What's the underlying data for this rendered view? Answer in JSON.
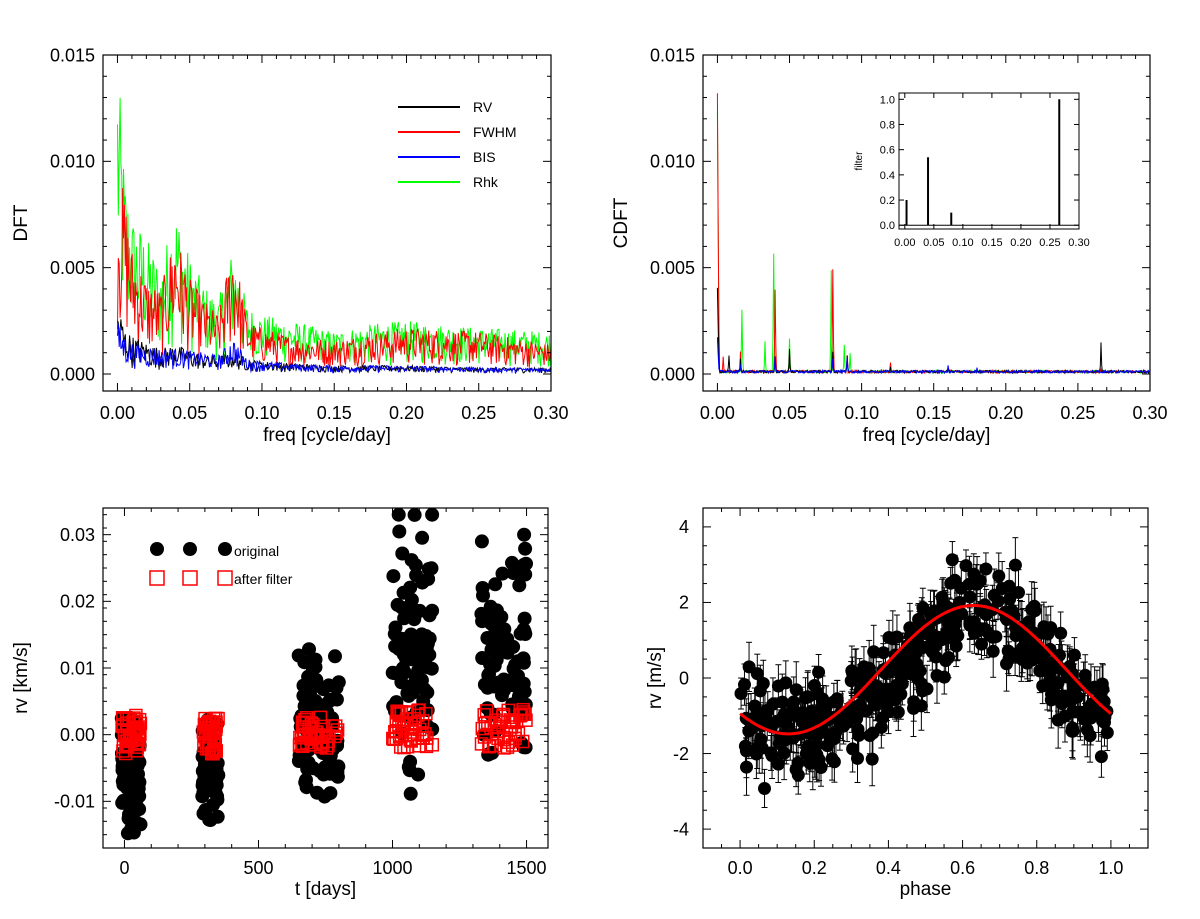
{
  "chart_data": [
    {
      "type": "line",
      "xlabel": "freq [cycle/day]",
      "ylabel": "DFT",
      "xlim": [
        -0.01,
        0.3
      ],
      "ylim": [
        -0.0008,
        0.015
      ],
      "x_ticks": [
        "0.00",
        "0.05",
        "0.10",
        "0.15",
        "0.20",
        "0.25",
        "0.30"
      ],
      "y_ticks": [
        "0.000",
        "0.005",
        "0.010",
        "0.015"
      ],
      "legend_position": "top-right",
      "series": [
        {
          "name": "RV",
          "color": "#000000",
          "x": [
            0.0,
            0.005,
            0.01,
            0.02,
            0.03,
            0.04,
            0.05,
            0.06,
            0.07,
            0.08,
            0.09,
            0.1,
            0.12,
            0.15,
            0.18,
            0.2,
            0.25,
            0.3
          ],
          "y": [
            0.0035,
            0.0022,
            0.0018,
            0.0015,
            0.0012,
            0.0014,
            0.0011,
            0.0009,
            0.0008,
            0.0011,
            0.0007,
            0.0006,
            0.0005,
            0.0004,
            0.0004,
            0.0004,
            0.0003,
            0.0003
          ]
        },
        {
          "name": "FWHM",
          "color": "#ff0000",
          "x": [
            0.0,
            0.005,
            0.01,
            0.02,
            0.03,
            0.04,
            0.05,
            0.06,
            0.07,
            0.08,
            0.09,
            0.1,
            0.12,
            0.15,
            0.18,
            0.2,
            0.25,
            0.3
          ],
          "y": [
            0.0098,
            0.0085,
            0.006,
            0.0045,
            0.004,
            0.0068,
            0.0045,
            0.0035,
            0.0028,
            0.0063,
            0.0025,
            0.0022,
            0.0018,
            0.0016,
            0.002,
            0.0022,
            0.002,
            0.0014
          ]
        },
        {
          "name": "BIS",
          "color": "#0000ff",
          "x": [
            0.0,
            0.005,
            0.01,
            0.02,
            0.03,
            0.04,
            0.05,
            0.06,
            0.07,
            0.08,
            0.09,
            0.1,
            0.12,
            0.15,
            0.18,
            0.2,
            0.25,
            0.3
          ],
          "y": [
            0.0025,
            0.0018,
            0.0015,
            0.0013,
            0.0012,
            0.0012,
            0.0011,
            0.001,
            0.0009,
            0.0017,
            0.0007,
            0.0006,
            0.0005,
            0.0004,
            0.0004,
            0.0004,
            0.0003,
            0.0003
          ]
        },
        {
          "name": "Rhk",
          "color": "#00ff00",
          "x": [
            0.0,
            0.005,
            0.01,
            0.02,
            0.03,
            0.04,
            0.05,
            0.06,
            0.07,
            0.08,
            0.09,
            0.1,
            0.12,
            0.15,
            0.18,
            0.2,
            0.25,
            0.3
          ],
          "y": [
            0.015,
            0.0095,
            0.0075,
            0.0065,
            0.005,
            0.008,
            0.0055,
            0.0042,
            0.0035,
            0.006,
            0.0032,
            0.0028,
            0.0025,
            0.002,
            0.0024,
            0.0025,
            0.0022,
            0.002
          ]
        }
      ]
    },
    {
      "type": "line",
      "xlabel": "freq [cycle/day]",
      "ylabel": "CDFT",
      "xlim": [
        -0.01,
        0.3
      ],
      "ylim": [
        -0.0008,
        0.015
      ],
      "x_ticks": [
        "0.00",
        "0.05",
        "0.10",
        "0.15",
        "0.20",
        "0.25",
        "0.30"
      ],
      "y_ticks": [
        "0.000",
        "0.005",
        "0.010",
        "0.015"
      ],
      "series": [
        {
          "name": "RV",
          "color": "#000000",
          "x": [
            0.0,
            0.008,
            0.016,
            0.04,
            0.05,
            0.08,
            0.09,
            0.12,
            0.16,
            0.266
          ],
          "y": [
            0.0042,
            0.001,
            0.0008,
            0.001,
            0.0012,
            0.0011,
            0.0009,
            0.0004,
            0.0003,
            0.0015
          ]
        },
        {
          "name": "FWHM",
          "color": "#ff0000",
          "x": [
            0.0,
            0.004,
            0.016,
            0.04,
            0.05,
            0.08,
            0.09,
            0.12,
            0.16,
            0.266
          ],
          "y": [
            0.014,
            0.001,
            0.0012,
            0.0048,
            0.0009,
            0.0058,
            0.001,
            0.0006,
            0.0003,
            0.0003
          ]
        },
        {
          "name": "BIS",
          "color": "#0000ff",
          "x": [
            0.0,
            0.016,
            0.04,
            0.08,
            0.09,
            0.16,
            0.18
          ],
          "y": [
            0.0018,
            0.0005,
            0.0009,
            0.0009,
            0.0009,
            0.0005,
            0.0003
          ]
        },
        {
          "name": "Rhk",
          "color": "#00ff00",
          "x": [
            0.0,
            0.017,
            0.033,
            0.039,
            0.05,
            0.079,
            0.088,
            0.092
          ],
          "y": [
            0.015,
            0.0035,
            0.0017,
            0.0061,
            0.0018,
            0.0058,
            0.0014,
            0.0011
          ]
        }
      ],
      "inset": {
        "type": "bar",
        "ylabel": "filter",
        "xlim": [
          -0.01,
          0.3
        ],
        "ylim": [
          -0.03,
          1.05
        ],
        "x_ticks": [
          "0.00",
          "0.05",
          "0.10",
          "0.15",
          "0.20",
          "0.25",
          "0.30"
        ],
        "y_ticks": [
          "0.0",
          "0.2",
          "0.4",
          "0.6",
          "0.8",
          "1.0"
        ],
        "x": [
          0.003,
          0.04,
          0.08,
          0.266
        ],
        "values": [
          0.2,
          0.54,
          0.1,
          1.0
        ]
      }
    },
    {
      "type": "scatter",
      "xlabel": "t [days]",
      "ylabel": "rv [km/s]",
      "xlim": [
        -80,
        1580
      ],
      "ylim": [
        -0.017,
        0.034
      ],
      "x_ticks": [
        "0",
        "500",
        "1000",
        "1500"
      ],
      "y_ticks": [
        "-0.01",
        "0.00",
        "0.01",
        "0.02",
        "0.03"
      ],
      "legend_position": "top-left",
      "series": [
        {
          "name": "original",
          "color": "#000000",
          "marker": "circle",
          "groups": [
            {
              "t": [
                -10,
                60
              ],
              "rv": [
                -0.0148,
                0.0025
              ]
            },
            {
              "t": [
                290,
                350
              ],
              "rv": [
                -0.0128,
                0.0022
              ]
            },
            {
              "t": [
                650,
                800
              ],
              "rv": [
                -0.0105,
                0.014
              ]
            },
            {
              "t": [
                1000,
                1150
              ],
              "rv": [
                -0.009,
                0.033
              ]
            },
            {
              "t": [
                1330,
                1500
              ],
              "rv": [
                -0.003,
                0.03
              ]
            }
          ]
        },
        {
          "name": "after filter",
          "color": "#ff0000",
          "marker": "square",
          "groups": [
            {
              "t": [
                -10,
                60
              ],
              "rv": [
                -0.003,
                0.003
              ]
            },
            {
              "t": [
                290,
                350
              ],
              "rv": [
                -0.003,
                0.0025
              ]
            },
            {
              "t": [
                650,
                800
              ],
              "rv": [
                -0.002,
                0.003
              ]
            },
            {
              "t": [
                1000,
                1150
              ],
              "rv": [
                -0.002,
                0.004
              ]
            },
            {
              "t": [
                1330,
                1500
              ],
              "rv": [
                -0.002,
                0.004
              ]
            }
          ]
        }
      ]
    },
    {
      "type": "scatter",
      "xlabel": "phase",
      "ylabel": "rv [m/s]",
      "xlim": [
        -0.1,
        1.1
      ],
      "ylim": [
        -4.5,
        4.5
      ],
      "x_ticks": [
        "0.0",
        "0.2",
        "0.4",
        "0.6",
        "0.8",
        "1.0"
      ],
      "y_ticks": [
        "-4",
        "-2",
        "0",
        "2",
        "4"
      ],
      "points": {
        "color": "#000000",
        "error_bars": true,
        "phase_range": [
          0.0,
          1.0
        ],
        "rv_range": [
          -3.0,
          3.7
        ]
      },
      "fit": {
        "color": "#ff0000",
        "type": "sinusoid",
        "phase": [
          0.0,
          0.1,
          0.2,
          0.3,
          0.4,
          0.5,
          0.6,
          0.63,
          0.7,
          0.8,
          0.9,
          1.0
        ],
        "rv": [
          -1.15,
          -1.48,
          -1.35,
          -0.85,
          -0.05,
          0.95,
          1.85,
          1.93,
          1.7,
          0.75,
          -0.35,
          -1.15
        ]
      }
    }
  ]
}
